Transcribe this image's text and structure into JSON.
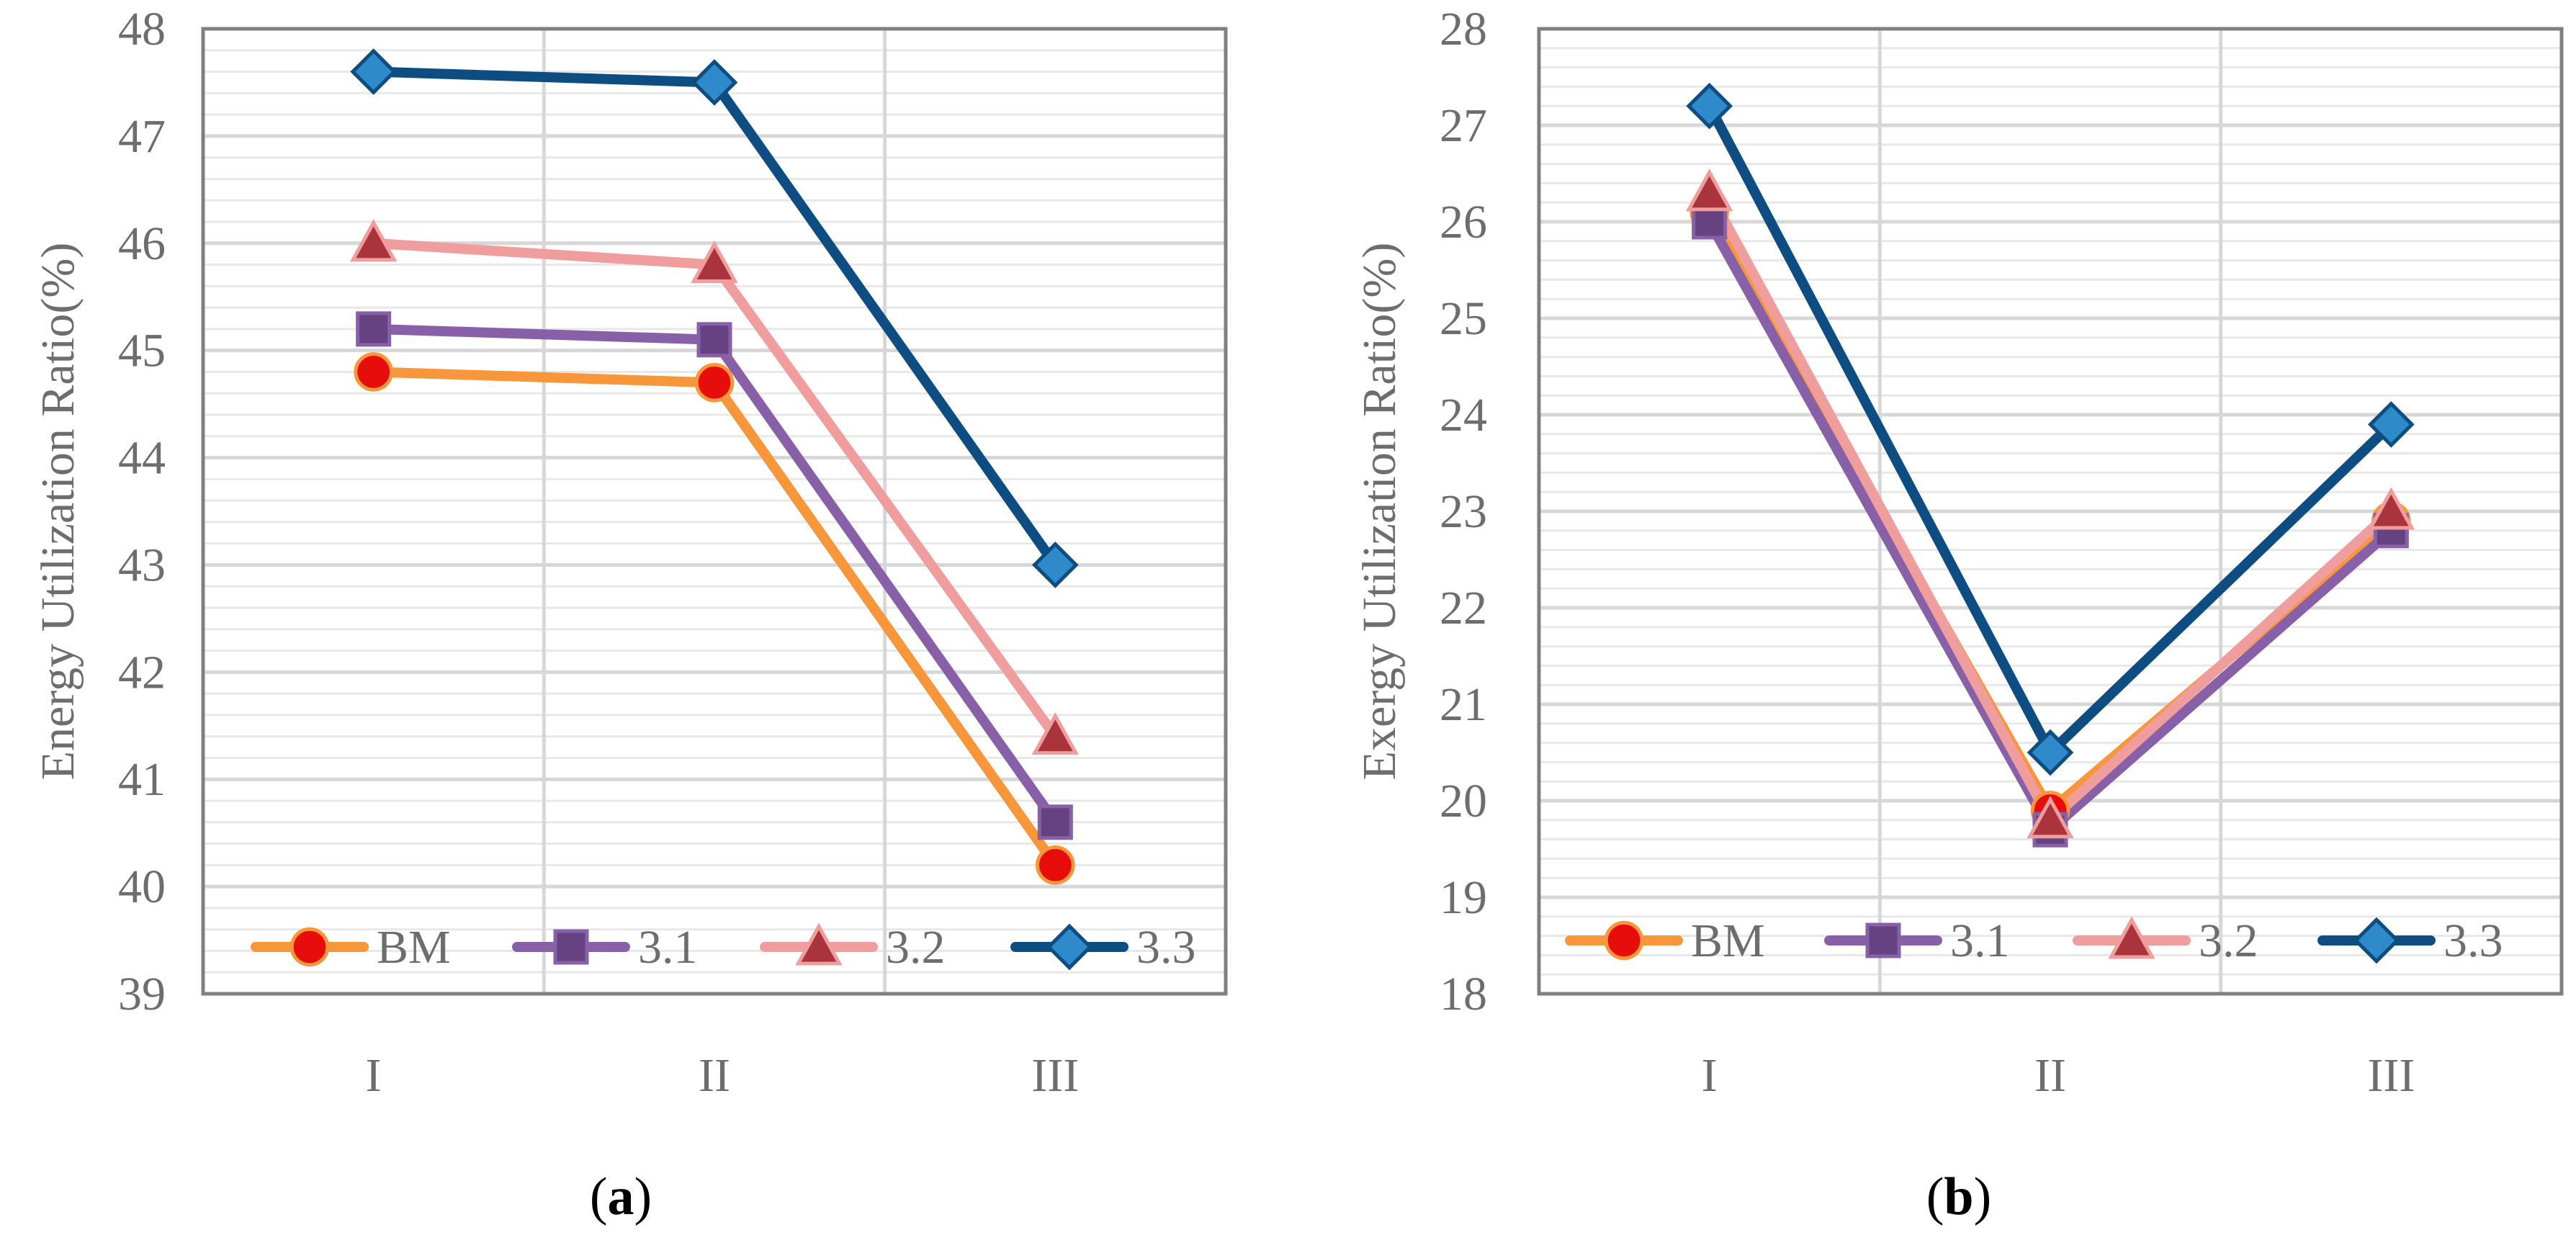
{
  "colors": {
    "BM": "#f7963a",
    "BM_marker_fill": "#e80d0d",
    "3.1": "#8760a8",
    "3.1_marker_fill": "#674283",
    "3.2": "#f09d9d",
    "3.2_marker_fill": "#a9343d",
    "3.3": "#0e4d82",
    "3.3_marker_fill": "#2f8ac9",
    "axis_text": "#6d6d6d",
    "major_grid": "#d7d7d7",
    "minor_grid": "#e8e8e8",
    "frame": "#808080"
  },
  "chart_data": [
    {
      "type": "line",
      "panel": "a",
      "caption_open": "(",
      "caption_letter": "a",
      "caption_close": ")",
      "ylabel": "Energy Utilization Ratio(%)",
      "xlabel": "",
      "categories": [
        "I",
        "II",
        "III"
      ],
      "ylim": [
        39,
        48
      ],
      "yticks": [
        "39",
        "40",
        "41",
        "42",
        "43",
        "44",
        "45",
        "46",
        "47",
        "48"
      ],
      "minor_grid_step": 0.2,
      "legend_position": "bottom",
      "series": [
        {
          "name": "BM",
          "marker": "circle",
          "values": [
            44.8,
            44.7,
            40.2
          ]
        },
        {
          "name": "3.1",
          "marker": "square",
          "values": [
            45.2,
            45.1,
            40.6
          ]
        },
        {
          "name": "3.2",
          "marker": "triangle",
          "values": [
            46.0,
            45.8,
            41.4
          ]
        },
        {
          "name": "3.3",
          "marker": "diamond",
          "values": [
            47.6,
            47.5,
            43.0
          ]
        }
      ]
    },
    {
      "type": "line",
      "panel": "b",
      "caption_open": "(",
      "caption_letter": "b",
      "caption_close": ")",
      "ylabel": "Exergy Utilization Ratio(%)",
      "xlabel": "",
      "categories": [
        "I",
        "II",
        "III"
      ],
      "ylim": [
        18,
        28
      ],
      "yticks": [
        "18",
        "19",
        "20",
        "21",
        "22",
        "23",
        "24",
        "25",
        "26",
        "27",
        "28"
      ],
      "minor_grid_step": 0.2,
      "legend_position": "bottom",
      "series": [
        {
          "name": "BM",
          "marker": "circle",
          "values": [
            26.1,
            19.9,
            22.9
          ]
        },
        {
          "name": "3.1",
          "marker": "square",
          "values": [
            26.0,
            19.7,
            22.8
          ]
        },
        {
          "name": "3.2",
          "marker": "triangle",
          "values": [
            26.3,
            19.8,
            23.0
          ]
        },
        {
          "name": "3.3",
          "marker": "diamond",
          "values": [
            27.2,
            20.5,
            23.9
          ]
        }
      ]
    }
  ]
}
